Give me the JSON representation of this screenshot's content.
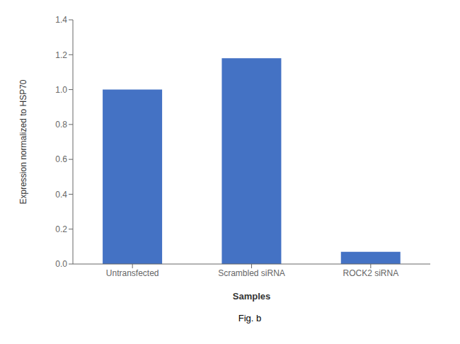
{
  "chart_data": {
    "type": "bar",
    "categories": [
      "Untransfected",
      "Scrambled siRNA",
      "ROCK2 siRNA"
    ],
    "values": [
      1.0,
      1.18,
      0.07
    ],
    "color": "#4472C4",
    "xlabel": "Samples",
    "ylabel": "Expression normalized to HSP70",
    "ylim": [
      0,
      1.4
    ],
    "yticks": [
      {
        "value": 0,
        "label": "0.0"
      },
      0.2,
      0.4,
      0.6,
      0.8,
      {
        "value": 1,
        "label": "1.0"
      },
      1.2,
      1.4
    ],
    "annotations": [
      "Fig. b"
    ]
  }
}
